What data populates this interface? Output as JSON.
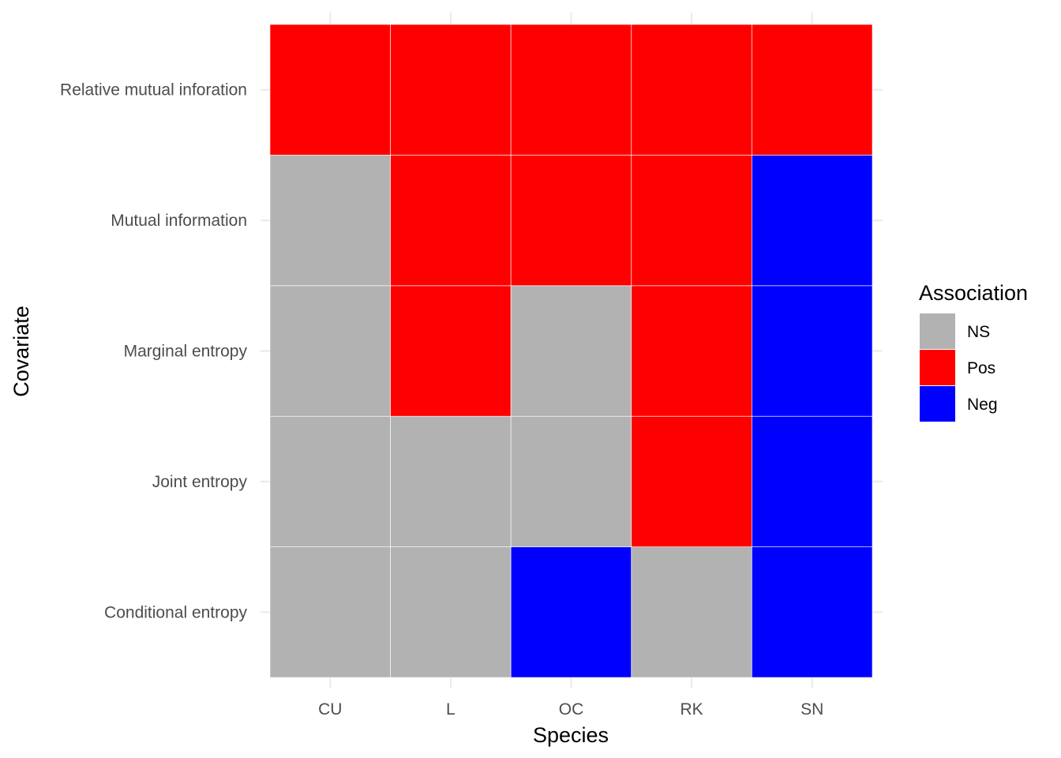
{
  "chart_data": {
    "type": "heatmap",
    "title": "",
    "xlabel": "Species",
    "ylabel": "Covariate",
    "x_categories": [
      "CU",
      "L",
      "OC",
      "RK",
      "SN"
    ],
    "y_categories": [
      "Conditional entropy",
      "Joint entropy",
      "Marginal entropy",
      "Mutual information",
      "Relative mutual inforation"
    ],
    "values": {
      "Relative mutual inforation": [
        "Pos",
        "Pos",
        "Pos",
        "Pos",
        "Pos"
      ],
      "Mutual information": [
        "NS",
        "Pos",
        "Pos",
        "Pos",
        "Neg"
      ],
      "Marginal entropy": [
        "NS",
        "Pos",
        "NS",
        "Pos",
        "Neg"
      ],
      "Joint entropy": [
        "NS",
        "NS",
        "NS",
        "Pos",
        "Neg"
      ],
      "Conditional entropy": [
        "NS",
        "NS",
        "Neg",
        "NS",
        "Neg"
      ]
    },
    "legend": {
      "title": "Association",
      "position": "right",
      "entries": [
        {
          "label": "NS",
          "color": "#b2b2b2"
        },
        {
          "label": "Pos",
          "color": "#ff0000"
        },
        {
          "label": "Neg",
          "color": "#0000ff"
        }
      ]
    },
    "grid": true
  }
}
